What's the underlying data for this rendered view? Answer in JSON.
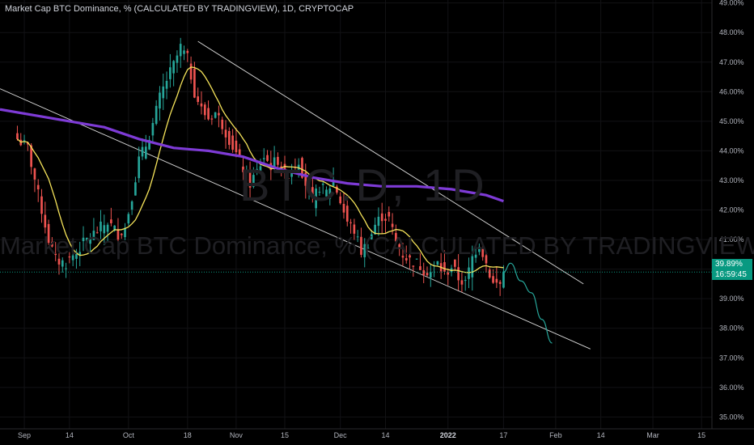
{
  "header": {
    "title": "Market Cap BTC Dominance, % (CALCULATED BY TRADINGVIEW), 1D, CRYPTOCAP"
  },
  "watermark": {
    "symbol": "BTC.D, 1D",
    "description": "Market Cap BTC Dominance, % (CALCULATED BY TRADINGVIEW)"
  },
  "price_label": {
    "value": "39.89%",
    "countdown": "16:59:45"
  },
  "colors": {
    "background": "#000000",
    "up": "#26a69a",
    "down": "#ef5350",
    "ma_fast": "#f5e35a",
    "ma_slow": "#7e3bd6",
    "channel": "#d9d9d9",
    "projection": "#26a69a"
  },
  "chart_data": {
    "type": "candlestick",
    "title": "Market Cap BTC Dominance, % (CALCULATED BY TRADINGVIEW), 1D, CRYPTOCAP",
    "y_unit": "%",
    "ylim": [
      34.6,
      49.1
    ],
    "y_ticks": [
      "49.00%",
      "48.00%",
      "47.00%",
      "46.00%",
      "45.00%",
      "44.00%",
      "43.00%",
      "42.00%",
      "41.00%",
      "40.00%",
      "39.00%",
      "38.00%",
      "37.00%",
      "36.00%",
      "35.00%"
    ],
    "x_ticks": [
      {
        "label": "Sep",
        "day": 2
      },
      {
        "label": "14",
        "day": 15
      },
      {
        "label": "Oct",
        "day": 32
      },
      {
        "label": "18",
        "day": 49
      },
      {
        "label": "Nov",
        "day": 63
      },
      {
        "label": "15",
        "day": 77
      },
      {
        "label": "Dec",
        "day": 93
      },
      {
        "label": "14",
        "day": 106
      },
      {
        "label": "2022",
        "day": 124,
        "bold": true
      },
      {
        "label": "17",
        "day": 140
      },
      {
        "label": "Feb",
        "day": 155
      },
      {
        "label": "14",
        "day": 168
      },
      {
        "label": "Mar",
        "day": 183
      },
      {
        "label": "15",
        "day": 197
      }
    ],
    "x_range_days": [
      -5,
      200
    ],
    "close_anchors": [
      [
        0,
        44.4
      ],
      [
        3,
        44.1
      ],
      [
        6,
        42.5
      ],
      [
        9,
        41.0
      ],
      [
        11,
        40.3
      ],
      [
        14,
        40.2
      ],
      [
        17,
        40.6
      ],
      [
        20,
        41.0
      ],
      [
        23,
        41.3
      ],
      [
        26,
        41.6
      ],
      [
        29,
        41.2
      ],
      [
        31,
        41.4
      ],
      [
        33,
        42.5
      ],
      [
        35,
        43.7
      ],
      [
        37,
        44.2
      ],
      [
        39,
        44.9
      ],
      [
        41,
        45.8
      ],
      [
        43,
        46.4
      ],
      [
        45,
        46.9
      ],
      [
        47,
        47.5
      ],
      [
        49,
        47.1
      ],
      [
        51,
        46.0
      ],
      [
        53,
        45.4
      ],
      [
        55,
        45.1
      ],
      [
        57,
        45.3
      ],
      [
        59,
        44.9
      ],
      [
        61,
        44.4
      ],
      [
        63,
        43.9
      ],
      [
        65,
        43.4
      ],
      [
        67,
        42.9
      ],
      [
        69,
        43.3
      ],
      [
        71,
        43.8
      ],
      [
        73,
        43.5
      ],
      [
        75,
        43.7
      ],
      [
        77,
        43.1
      ],
      [
        79,
        43.4
      ],
      [
        81,
        43.7
      ],
      [
        83,
        42.9
      ],
      [
        85,
        42.3
      ],
      [
        87,
        42.8
      ],
      [
        89,
        42.6
      ],
      [
        91,
        43.0
      ],
      [
        93,
        42.3
      ],
      [
        95,
        41.6
      ],
      [
        97,
        41.3
      ],
      [
        99,
        40.6
      ],
      [
        101,
        40.9
      ],
      [
        103,
        41.5
      ],
      [
        105,
        41.8
      ],
      [
        107,
        41.7
      ],
      [
        109,
        40.9
      ],
      [
        111,
        40.5
      ],
      [
        113,
        40.3
      ],
      [
        115,
        40.2
      ],
      [
        117,
        40.0
      ],
      [
        119,
        39.9
      ],
      [
        121,
        40.2
      ],
      [
        123,
        39.8
      ],
      [
        125,
        40.1
      ],
      [
        127,
        39.7
      ],
      [
        129,
        39.5
      ],
      [
        131,
        40.4
      ],
      [
        133,
        40.9
      ],
      [
        135,
        40.2
      ],
      [
        137,
        39.5
      ],
      [
        139,
        39.5
      ],
      [
        140,
        39.9
      ]
    ],
    "ma_slow": [
      [
        -5,
        45.4
      ],
      [
        5,
        45.2
      ],
      [
        15,
        45.0
      ],
      [
        25,
        44.8
      ],
      [
        35,
        44.4
      ],
      [
        45,
        44.1
      ],
      [
        55,
        44.0
      ],
      [
        65,
        43.8
      ],
      [
        75,
        43.4
      ],
      [
        85,
        43.1
      ],
      [
        95,
        42.9
      ],
      [
        105,
        42.8
      ],
      [
        115,
        42.8
      ],
      [
        125,
        42.7
      ],
      [
        135,
        42.5
      ],
      [
        140,
        42.3
      ]
    ],
    "channel_upper": [
      [
        52,
        47.7
      ],
      [
        163,
        39.5
      ]
    ],
    "channel_lower": [
      [
        -5,
        46.1
      ],
      [
        165,
        37.3
      ]
    ],
    "projection": [
      [
        140,
        39.9
      ],
      [
        142,
        40.2
      ],
      [
        145,
        39.6
      ],
      [
        148,
        39.2
      ],
      [
        151,
        38.3
      ],
      [
        154,
        37.5
      ]
    ]
  }
}
